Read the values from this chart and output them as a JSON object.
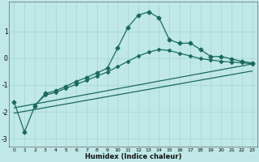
{
  "title": "",
  "xlabel": "Humidex (Indice chaleur)",
  "bg_color": "#c0e8e8",
  "grid_color": "#a8d8d8",
  "line_color": "#1a6b5a",
  "xlim": [
    -0.5,
    23.5
  ],
  "ylim": [
    -3.3,
    2.1
  ],
  "yticks": [
    -3,
    -2,
    -1,
    0,
    1
  ],
  "xticks": [
    0,
    1,
    2,
    3,
    4,
    5,
    6,
    7,
    8,
    9,
    10,
    11,
    12,
    13,
    14,
    15,
    16,
    17,
    18,
    19,
    20,
    21,
    22,
    23
  ],
  "line1_x": [
    0,
    1,
    2,
    3,
    4,
    5,
    6,
    7,
    8,
    9,
    10,
    11,
    12,
    13,
    14,
    15,
    16,
    17,
    18,
    19,
    20,
    21,
    22,
    23
  ],
  "line1_y": [
    -1.65,
    -2.75,
    -1.78,
    -1.32,
    -1.22,
    -1.05,
    -0.87,
    -0.72,
    -0.55,
    -0.38,
    0.38,
    1.15,
    1.6,
    1.72,
    1.5,
    0.68,
    0.55,
    0.56,
    0.32,
    0.06,
    0.06,
    -0.03,
    -0.12,
    -0.18
  ],
  "line2_x": [
    2,
    3,
    4,
    5,
    6,
    7,
    8,
    9,
    10,
    11,
    12,
    13,
    14,
    15,
    16,
    17,
    18,
    19,
    20,
    21,
    22,
    23
  ],
  "line2_y": [
    -1.75,
    -1.38,
    -1.28,
    -1.12,
    -0.98,
    -0.83,
    -0.67,
    -0.52,
    -0.32,
    -0.12,
    0.08,
    0.22,
    0.32,
    0.28,
    0.18,
    0.08,
    -0.02,
    -0.07,
    -0.12,
    -0.15,
    -0.17,
    -0.22
  ],
  "line3_x": [
    0,
    23
  ],
  "line3_y": [
    -1.85,
    -0.22
  ],
  "line4_x": [
    0,
    23
  ],
  "line4_y": [
    -2.05,
    -0.48
  ]
}
